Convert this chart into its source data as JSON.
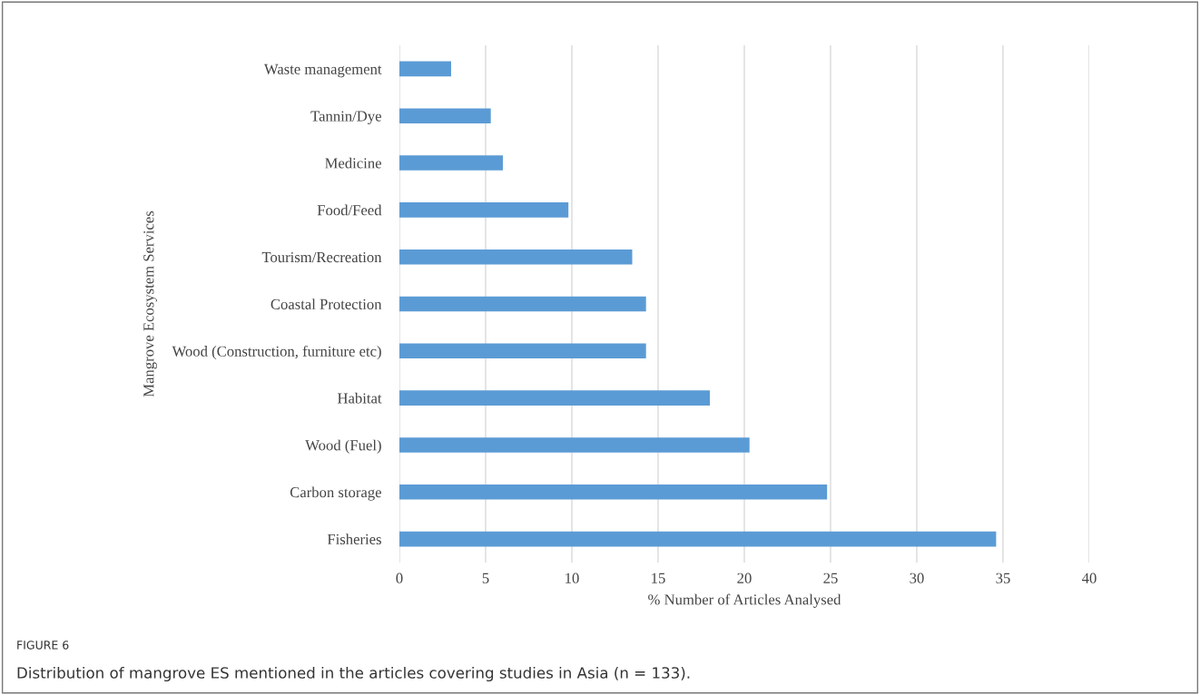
{
  "chart_data": {
    "type": "bar",
    "orientation": "horizontal",
    "categories": [
      "Waste management",
      "Tannin/Dye",
      "Medicine",
      "Food/Feed",
      "Tourism/Recreation",
      "Coastal Protection",
      "Wood (Construction, furniture etc)",
      "Habitat",
      "Wood (Fuel)",
      "Carbon storage",
      "Fisheries"
    ],
    "values": [
      3.0,
      5.3,
      6.0,
      9.8,
      13.5,
      14.3,
      14.3,
      18.0,
      20.3,
      24.8,
      34.6
    ],
    "color": "#5b9bd5",
    "xlabel": "% Number of Articles Analysed",
    "ylabel": "Mangrove Ecosystem Services",
    "xlim": [
      0,
      40
    ],
    "xticks": [
      0,
      5,
      10,
      15,
      20,
      25,
      30,
      35,
      40
    ],
    "grid": "x",
    "annotations": [
      "FIGURE 6",
      "Distribution of mangrove ES mentioned in the articles covering studies in Asia (n = 133)."
    ]
  }
}
